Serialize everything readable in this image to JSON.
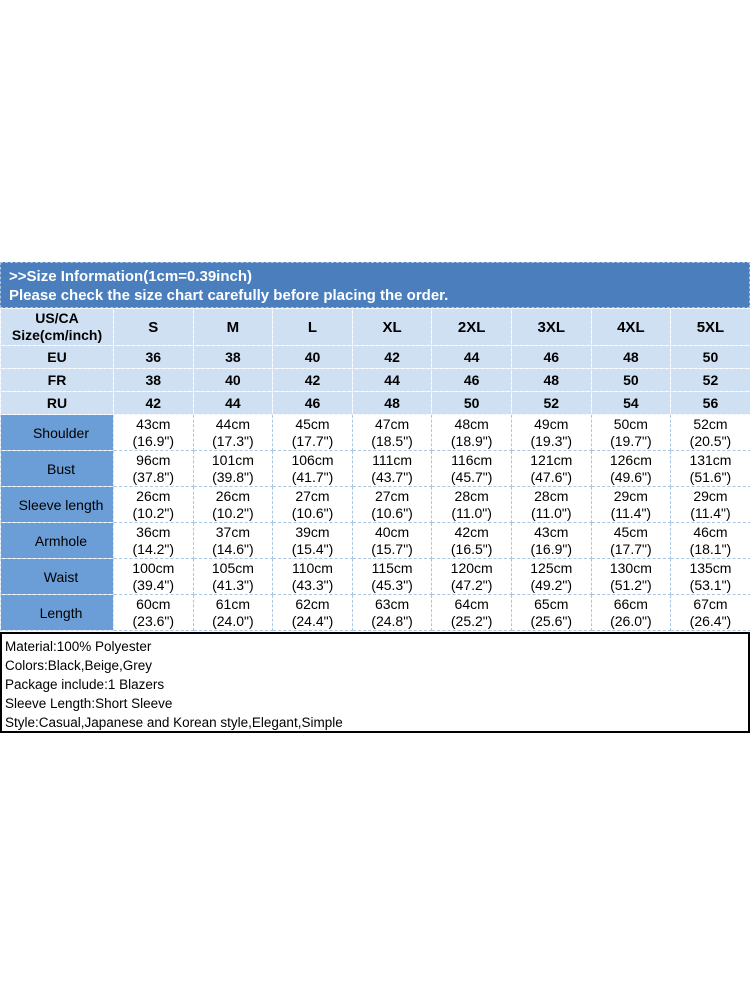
{
  "banner": {
    "title": ">>Size Information(1cm=0.39inch)",
    "subtitle": "Please check the size chart carefully before placing the order.",
    "bg_color": "#4a7ebc",
    "text_color": "#ffffff"
  },
  "size_table": {
    "corner_header_lines": [
      "US/CA",
      "Size(cm/inch)"
    ],
    "sizes": [
      "S",
      "M",
      "L",
      "XL",
      "2XL",
      "3XL",
      "4XL",
      "5XL"
    ],
    "region_rows": [
      {
        "label": "EU",
        "values": [
          "36",
          "38",
          "40",
          "42",
          "44",
          "46",
          "48",
          "50"
        ]
      },
      {
        "label": "FR",
        "values": [
          "38",
          "40",
          "42",
          "44",
          "46",
          "48",
          "50",
          "52"
        ]
      },
      {
        "label": "RU",
        "values": [
          "42",
          "44",
          "46",
          "48",
          "50",
          "52",
          "54",
          "56"
        ]
      }
    ],
    "measurement_rows": [
      {
        "label": "Shoulder",
        "cm": [
          "43cm",
          "44cm",
          "45cm",
          "47cm",
          "48cm",
          "49cm",
          "50cm",
          "52cm"
        ],
        "inch": [
          "(16.9\")",
          "(17.3\")",
          "(17.7\")",
          "(18.5\")",
          "(18.9\")",
          "(19.3\")",
          "(19.7\")",
          "(20.5\")"
        ]
      },
      {
        "label": "Bust",
        "cm": [
          "96cm",
          "101cm",
          "106cm",
          "111cm",
          "116cm",
          "121cm",
          "126cm",
          "131cm"
        ],
        "inch": [
          "(37.8\")",
          "(39.8\")",
          "(41.7\")",
          "(43.7\")",
          "(45.7\")",
          "(47.6\")",
          "(49.6\")",
          "(51.6\")"
        ]
      },
      {
        "label": "Sleeve length",
        "cm": [
          "26cm",
          "26cm",
          "27cm",
          "27cm",
          "28cm",
          "28cm",
          "29cm",
          "29cm"
        ],
        "inch": [
          "(10.2\")",
          "(10.2\")",
          "(10.6\")",
          "(10.6\")",
          "(11.0\")",
          "(11.0\")",
          "(11.4\")",
          "(11.4\")"
        ]
      },
      {
        "label": "Armhole",
        "cm": [
          "36cm",
          "37cm",
          "39cm",
          "40cm",
          "42cm",
          "43cm",
          "45cm",
          "46cm"
        ],
        "inch": [
          "(14.2\")",
          "(14.6\")",
          "(15.4\")",
          "(15.7\")",
          "(16.5\")",
          "(16.9\")",
          "(17.7\")",
          "(18.1\")"
        ]
      },
      {
        "label": "Waist",
        "cm": [
          "100cm",
          "105cm",
          "110cm",
          "115cm",
          "120cm",
          "125cm",
          "130cm",
          "135cm"
        ],
        "inch": [
          "(39.4\")",
          "(41.3\")",
          "(43.3\")",
          "(45.3\")",
          "(47.2\")",
          "(49.2\")",
          "(51.2\")",
          "(53.1\")"
        ]
      },
      {
        "label": "Length",
        "cm": [
          "60cm",
          "61cm",
          "62cm",
          "63cm",
          "64cm",
          "65cm",
          "66cm",
          "67cm"
        ],
        "inch": [
          "(23.6\")",
          "(24.0\")",
          "(24.4\")",
          "(24.8\")",
          "(25.2\")",
          "(25.6\")",
          "(26.0\")",
          "(26.4\")"
        ]
      }
    ],
    "colors": {
      "light_cell_bg": "#cfe0f2",
      "label_cell_bg": "#6b9ed6",
      "value_cell_bg": "#ffffff",
      "dashed_border_on_white": "#a9c6e2",
      "dashed_border_on_blue": "#eef4fb",
      "text": "#000000"
    }
  },
  "product_info": {
    "border_color": "#000000",
    "lines": [
      "Material:100% Polyester",
      "Colors:Black,Beige,Grey",
      "Package include:1 Blazers",
      "Sleeve Length:Short Sleeve",
      "Style:Casual,Japanese and Korean style,Elegant,Simple"
    ]
  }
}
